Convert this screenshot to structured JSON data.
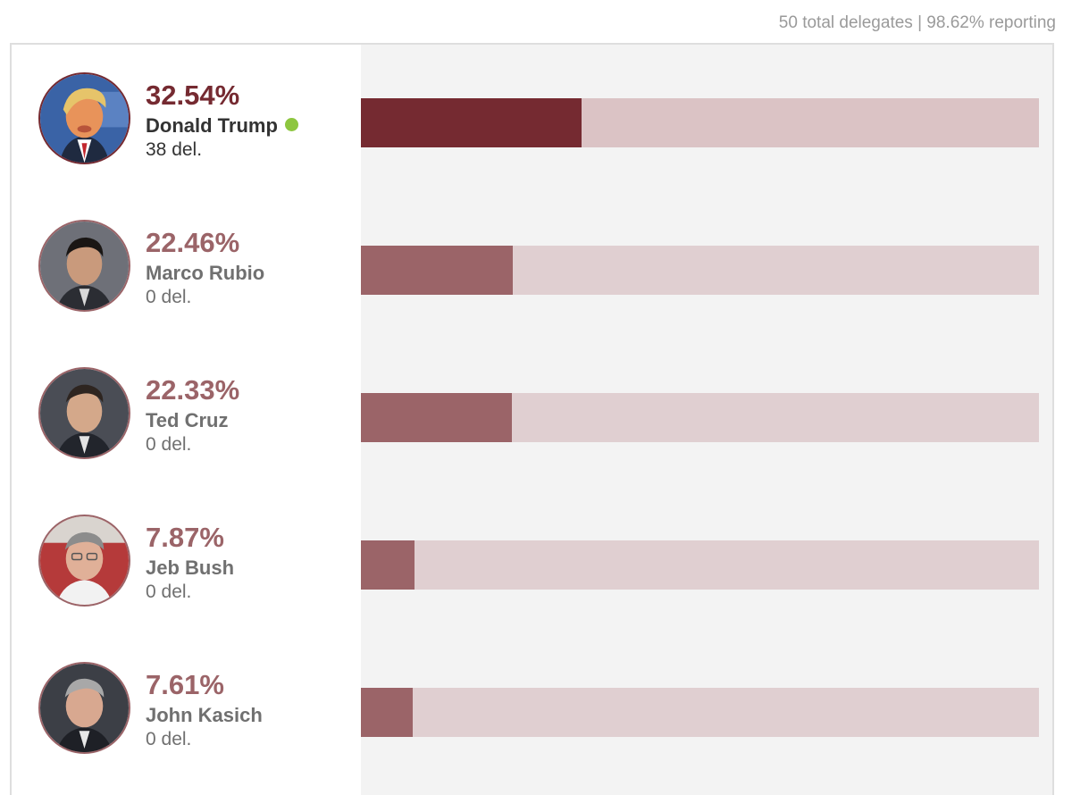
{
  "header": {
    "status": "50 total delegates | 98.62% reporting"
  },
  "colors": {
    "leader": "#752a31",
    "other": "#9b6468",
    "track_leader": "#dbc3c5",
    "track_other": "#e0cfd1",
    "winner_dot": "#8dc63f"
  },
  "candidates": [
    {
      "pct": "32.54%",
      "name": "Donald Trump",
      "delegates": "38 del.",
      "winner": true,
      "avatar": "portrait-donald-trump"
    },
    {
      "pct": "22.46%",
      "name": "Marco Rubio",
      "delegates": "0 del.",
      "winner": false,
      "avatar": "portrait-marco-rubio"
    },
    {
      "pct": "22.33%",
      "name": "Ted Cruz",
      "delegates": "0 del.",
      "winner": false,
      "avatar": "portrait-ted-cruz"
    },
    {
      "pct": "7.87%",
      "name": "Jeb Bush",
      "delegates": "0 del.",
      "winner": false,
      "avatar": "portrait-jeb-bush"
    },
    {
      "pct": "7.61%",
      "name": "John Kasich",
      "delegates": "0 del.",
      "winner": false,
      "avatar": "portrait-john-kasich"
    }
  ],
  "chart_data": {
    "type": "bar",
    "orientation": "horizontal",
    "categories": [
      "Donald Trump",
      "Marco Rubio",
      "Ted Cruz",
      "Jeb Bush",
      "John Kasich"
    ],
    "values": [
      32.54,
      22.46,
      22.33,
      7.87,
      7.61
    ],
    "unit": "%",
    "xlim": [
      0,
      100
    ],
    "title": "",
    "xlabel": "",
    "ylabel": "",
    "grid": false,
    "legend": "none"
  }
}
